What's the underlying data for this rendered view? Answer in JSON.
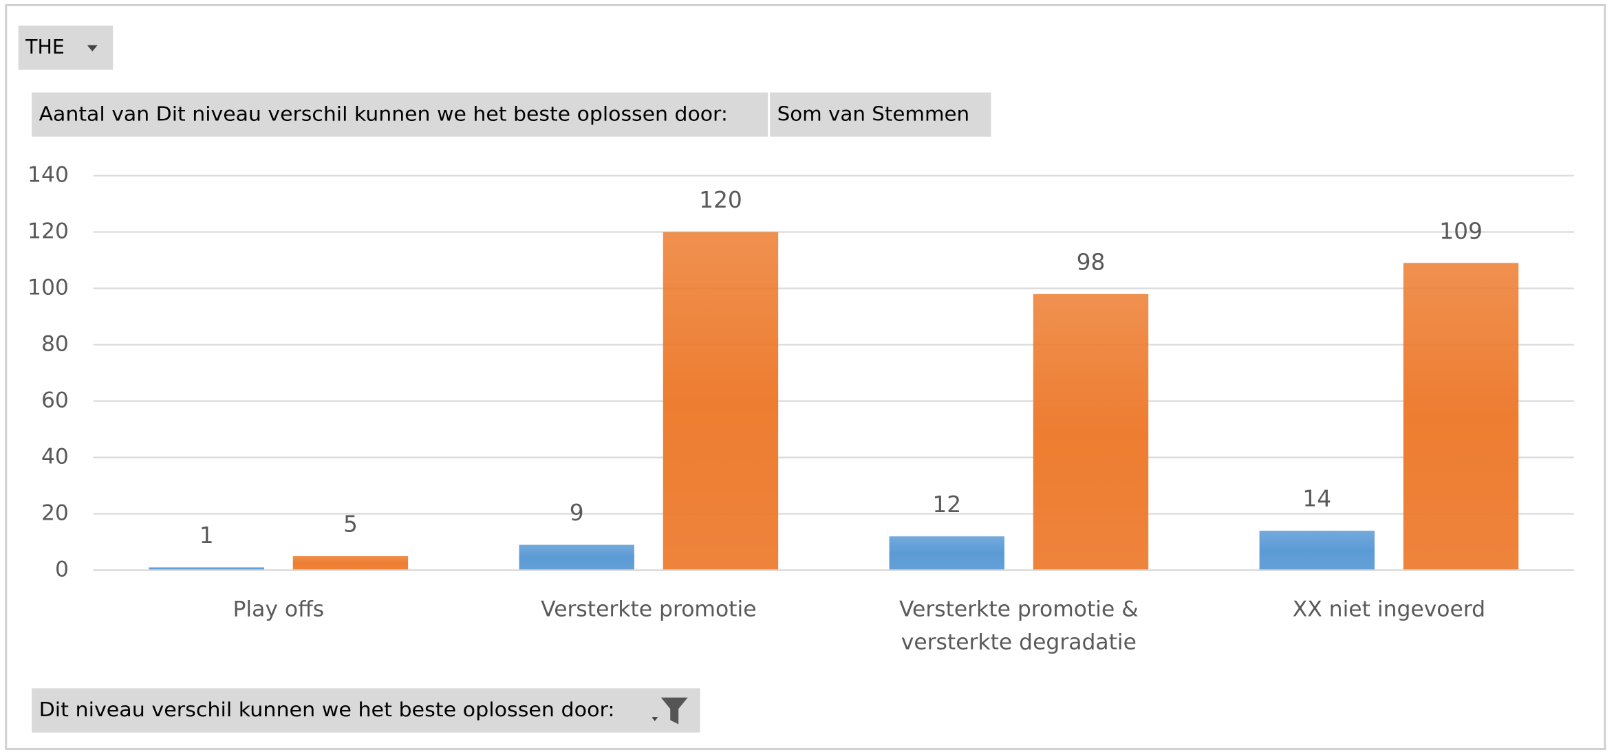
{
  "chart_data": {
    "type": "bar",
    "filter_field": "THE",
    "axis_field": "Dit niveau verschil kunnen we het beste oplossen door:",
    "categories": [
      "Play offs",
      "Versterkte promotie",
      "Versterkte promotie & versterkte degradatie",
      "XX niet ingevoerd"
    ],
    "series": [
      {
        "name": "Aantal van Dit niveau verschil kunnen we het beste oplossen door:",
        "color": "#5b9bd5",
        "values": [
          1,
          9,
          12,
          14
        ]
      },
      {
        "name": "Som van Stemmen",
        "color": "#ed7d31",
        "values": [
          5,
          120,
          98,
          109
        ]
      }
    ],
    "ylim": [
      0,
      140
    ],
    "yticks": [
      0,
      20,
      40,
      60,
      80,
      100,
      120,
      140
    ],
    "grid": true
  }
}
